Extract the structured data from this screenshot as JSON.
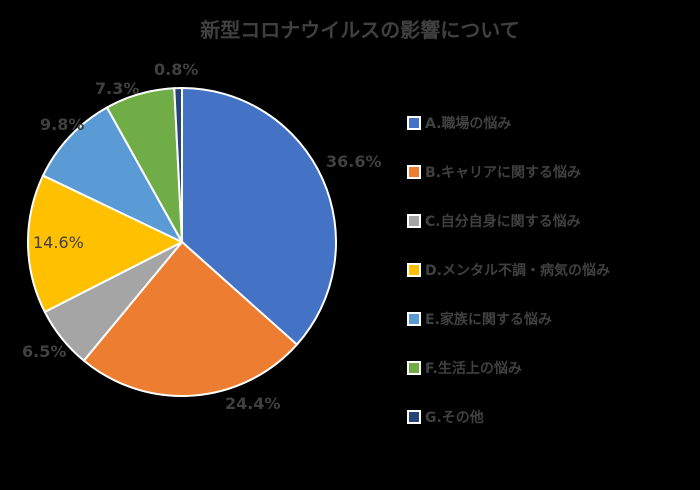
{
  "chart_data": {
    "type": "pie",
    "title": "新型コロナウイルスの影響について",
    "categories": [
      "A.職場の悩み",
      "B.キャリアに関する悩み",
      "C.自分自身に関する悩み",
      "D.メンタル不調・病気の悩み",
      "E.家族に関する悩み",
      "F.生活上の悩み",
      "G.その他"
    ],
    "values": [
      36.6,
      24.4,
      6.5,
      14.6,
      9.8,
      7.3,
      0.8
    ],
    "value_labels": [
      "36.6%",
      "24.4%",
      "6.5%",
      "14.6%",
      "9.8%",
      "7.3%",
      "0.8%"
    ],
    "colors": [
      "#4472C4",
      "#ED7D31",
      "#A5A5A5",
      "#FFC000",
      "#5B9BD5",
      "#70AD47",
      "#264478"
    ],
    "legend_position": "right"
  },
  "labels": {
    "a": "36.6%",
    "b": "24.4%",
    "c": "6.5%",
    "d": "14.6%",
    "e": "9.8%",
    "f": "7.3%",
    "g": "0.8%"
  },
  "legend": [
    "A.職場の悩み",
    "B.キャリアに関する悩み",
    "C.自分自身に関する悩み",
    "D.メンタル不調・病気の悩み",
    "E.家族に関する悩み",
    "F.生活上の悩み",
    "G.その他"
  ]
}
